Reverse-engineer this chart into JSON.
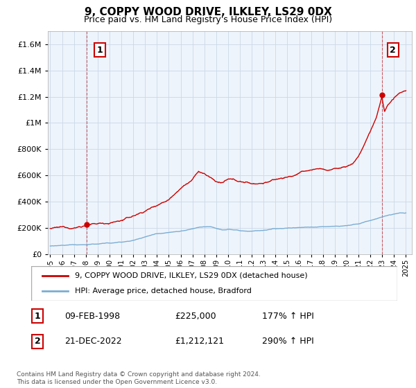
{
  "title": "9, COPPY WOOD DRIVE, ILKLEY, LS29 0DX",
  "subtitle": "Price paid vs. HM Land Registry's House Price Index (HPI)",
  "sale1_date": "09-FEB-1998",
  "sale1_price": 225000,
  "sale1_label": "177% ↑ HPI",
  "sale2_date": "21-DEC-2022",
  "sale2_price": 1212121,
  "sale2_label": "290% ↑ HPI",
  "sale1_x": 1998.1,
  "sale2_x": 2022.97,
  "legend_house": "9, COPPY WOOD DRIVE, ILKLEY, LS29 0DX (detached house)",
  "legend_hpi": "HPI: Average price, detached house, Bradford",
  "footnote": "Contains HM Land Registry data © Crown copyright and database right 2024.\nThis data is licensed under the Open Government Licence v3.0.",
  "line_color": "#cc0000",
  "hpi_color": "#7aadd4",
  "bg_color": "#ffffff",
  "plot_bg": "#eef4fb",
  "grid_color": "#c8d8e8",
  "ylim": [
    0,
    1700000
  ],
  "xlim": [
    1994.8,
    2025.5
  ],
  "yticks": [
    0,
    200000,
    400000,
    600000,
    800000,
    1000000,
    1200000,
    1400000,
    1600000
  ]
}
